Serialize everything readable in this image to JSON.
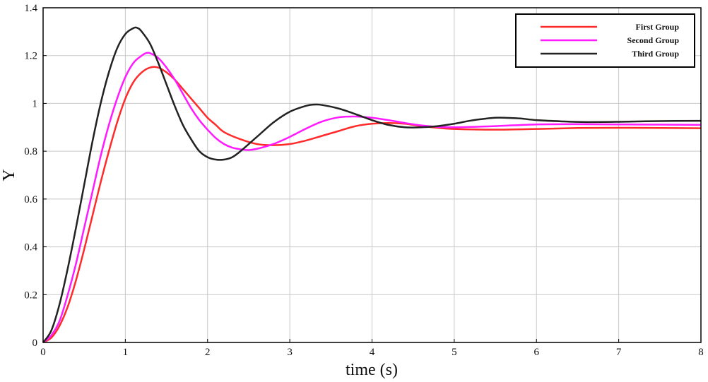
{
  "chart_data": {
    "type": "line",
    "title": "",
    "xlabel": "time (s)",
    "ylabel": "Y",
    "xlim": [
      0,
      8
    ],
    "ylim": [
      0,
      1.4
    ],
    "xticks": [
      0,
      1,
      2,
      3,
      4,
      5,
      6,
      7,
      8
    ],
    "yticks": [
      0,
      0.2,
      0.4,
      0.6,
      0.8,
      1,
      1.2,
      1.4
    ],
    "x_tick_labels": [
      "0",
      "1",
      "2",
      "3",
      "4",
      "5",
      "6",
      "7",
      "8"
    ],
    "y_tick_labels": [
      "0",
      "0.2",
      "0.4",
      "0.6",
      "0.8",
      "1",
      "1.2",
      "1.4"
    ],
    "grid": true,
    "legend_position": "top-right",
    "series": [
      {
        "name": "First Group",
        "color": "#ff2a2a",
        "points": [
          [
            0,
            0
          ],
          [
            0.1,
            0.02
          ],
          [
            0.2,
            0.07
          ],
          [
            0.3,
            0.15
          ],
          [
            0.4,
            0.26
          ],
          [
            0.5,
            0.39
          ],
          [
            0.6,
            0.53
          ],
          [
            0.7,
            0.67
          ],
          [
            0.8,
            0.8
          ],
          [
            0.9,
            0.92
          ],
          [
            1.0,
            1.02
          ],
          [
            1.1,
            1.09
          ],
          [
            1.2,
            1.13
          ],
          [
            1.3,
            1.15
          ],
          [
            1.4,
            1.15
          ],
          [
            1.5,
            1.13
          ],
          [
            1.6,
            1.1
          ],
          [
            1.7,
            1.06
          ],
          [
            1.8,
            1.02
          ],
          [
            1.9,
            0.98
          ],
          [
            2.0,
            0.94
          ],
          [
            2.1,
            0.91
          ],
          [
            2.2,
            0.88
          ],
          [
            2.4,
            0.85
          ],
          [
            2.6,
            0.83
          ],
          [
            2.8,
            0.825
          ],
          [
            3.0,
            0.83
          ],
          [
            3.2,
            0.845
          ],
          [
            3.4,
            0.865
          ],
          [
            3.6,
            0.885
          ],
          [
            3.8,
            0.905
          ],
          [
            4.0,
            0.915
          ],
          [
            4.2,
            0.918
          ],
          [
            4.4,
            0.915
          ],
          [
            4.6,
            0.905
          ],
          [
            4.8,
            0.898
          ],
          [
            5.0,
            0.893
          ],
          [
            5.5,
            0.89
          ],
          [
            6.0,
            0.893
          ],
          [
            6.5,
            0.897
          ],
          [
            7.0,
            0.898
          ],
          [
            7.5,
            0.897
          ],
          [
            8.0,
            0.896
          ]
        ]
      },
      {
        "name": "Second Group",
        "color": "#ff1aff",
        "points": [
          [
            0,
            0
          ],
          [
            0.1,
            0.03
          ],
          [
            0.2,
            0.09
          ],
          [
            0.3,
            0.2
          ],
          [
            0.4,
            0.33
          ],
          [
            0.5,
            0.48
          ],
          [
            0.6,
            0.63
          ],
          [
            0.7,
            0.78
          ],
          [
            0.8,
            0.91
          ],
          [
            0.9,
            1.02
          ],
          [
            1.0,
            1.11
          ],
          [
            1.1,
            1.17
          ],
          [
            1.2,
            1.2
          ],
          [
            1.25,
            1.21
          ],
          [
            1.3,
            1.21
          ],
          [
            1.4,
            1.19
          ],
          [
            1.5,
            1.15
          ],
          [
            1.6,
            1.1
          ],
          [
            1.7,
            1.04
          ],
          [
            1.8,
            0.98
          ],
          [
            1.9,
            0.93
          ],
          [
            2.0,
            0.89
          ],
          [
            2.1,
            0.855
          ],
          [
            2.2,
            0.83
          ],
          [
            2.3,
            0.815
          ],
          [
            2.4,
            0.808
          ],
          [
            2.5,
            0.805
          ],
          [
            2.6,
            0.81
          ],
          [
            2.8,
            0.83
          ],
          [
            3.0,
            0.86
          ],
          [
            3.2,
            0.895
          ],
          [
            3.4,
            0.925
          ],
          [
            3.6,
            0.942
          ],
          [
            3.8,
            0.945
          ],
          [
            4.0,
            0.94
          ],
          [
            4.2,
            0.93
          ],
          [
            4.4,
            0.918
          ],
          [
            4.6,
            0.908
          ],
          [
            4.8,
            0.902
          ],
          [
            5.0,
            0.9
          ],
          [
            5.5,
            0.905
          ],
          [
            6.0,
            0.912
          ],
          [
            6.5,
            0.913
          ],
          [
            7.0,
            0.912
          ],
          [
            7.5,
            0.911
          ],
          [
            8.0,
            0.91
          ]
        ]
      },
      {
        "name": "Third Group",
        "color": "#222222",
        "points": [
          [
            0,
            0
          ],
          [
            0.1,
            0.05
          ],
          [
            0.2,
            0.16
          ],
          [
            0.3,
            0.31
          ],
          [
            0.4,
            0.48
          ],
          [
            0.5,
            0.66
          ],
          [
            0.6,
            0.84
          ],
          [
            0.7,
            1.0
          ],
          [
            0.8,
            1.13
          ],
          [
            0.9,
            1.23
          ],
          [
            1.0,
            1.29
          ],
          [
            1.1,
            1.315
          ],
          [
            1.15,
            1.315
          ],
          [
            1.2,
            1.3
          ],
          [
            1.3,
            1.25
          ],
          [
            1.4,
            1.17
          ],
          [
            1.5,
            1.08
          ],
          [
            1.6,
            0.99
          ],
          [
            1.7,
            0.91
          ],
          [
            1.8,
            0.85
          ],
          [
            1.9,
            0.8
          ],
          [
            2.0,
            0.775
          ],
          [
            2.1,
            0.765
          ],
          [
            2.2,
            0.765
          ],
          [
            2.3,
            0.775
          ],
          [
            2.4,
            0.8
          ],
          [
            2.6,
            0.86
          ],
          [
            2.8,
            0.92
          ],
          [
            3.0,
            0.965
          ],
          [
            3.2,
            0.99
          ],
          [
            3.3,
            0.995
          ],
          [
            3.4,
            0.993
          ],
          [
            3.6,
            0.978
          ],
          [
            3.8,
            0.955
          ],
          [
            4.0,
            0.93
          ],
          [
            4.2,
            0.91
          ],
          [
            4.4,
            0.9
          ],
          [
            4.6,
            0.9
          ],
          [
            4.8,
            0.905
          ],
          [
            5.0,
            0.915
          ],
          [
            5.2,
            0.928
          ],
          [
            5.4,
            0.937
          ],
          [
            5.5,
            0.94
          ],
          [
            5.6,
            0.94
          ],
          [
            5.8,
            0.937
          ],
          [
            6.0,
            0.93
          ],
          [
            6.3,
            0.925
          ],
          [
            6.6,
            0.922
          ],
          [
            7.0,
            0.923
          ],
          [
            7.5,
            0.926
          ],
          [
            8.0,
            0.927
          ]
        ]
      }
    ]
  }
}
